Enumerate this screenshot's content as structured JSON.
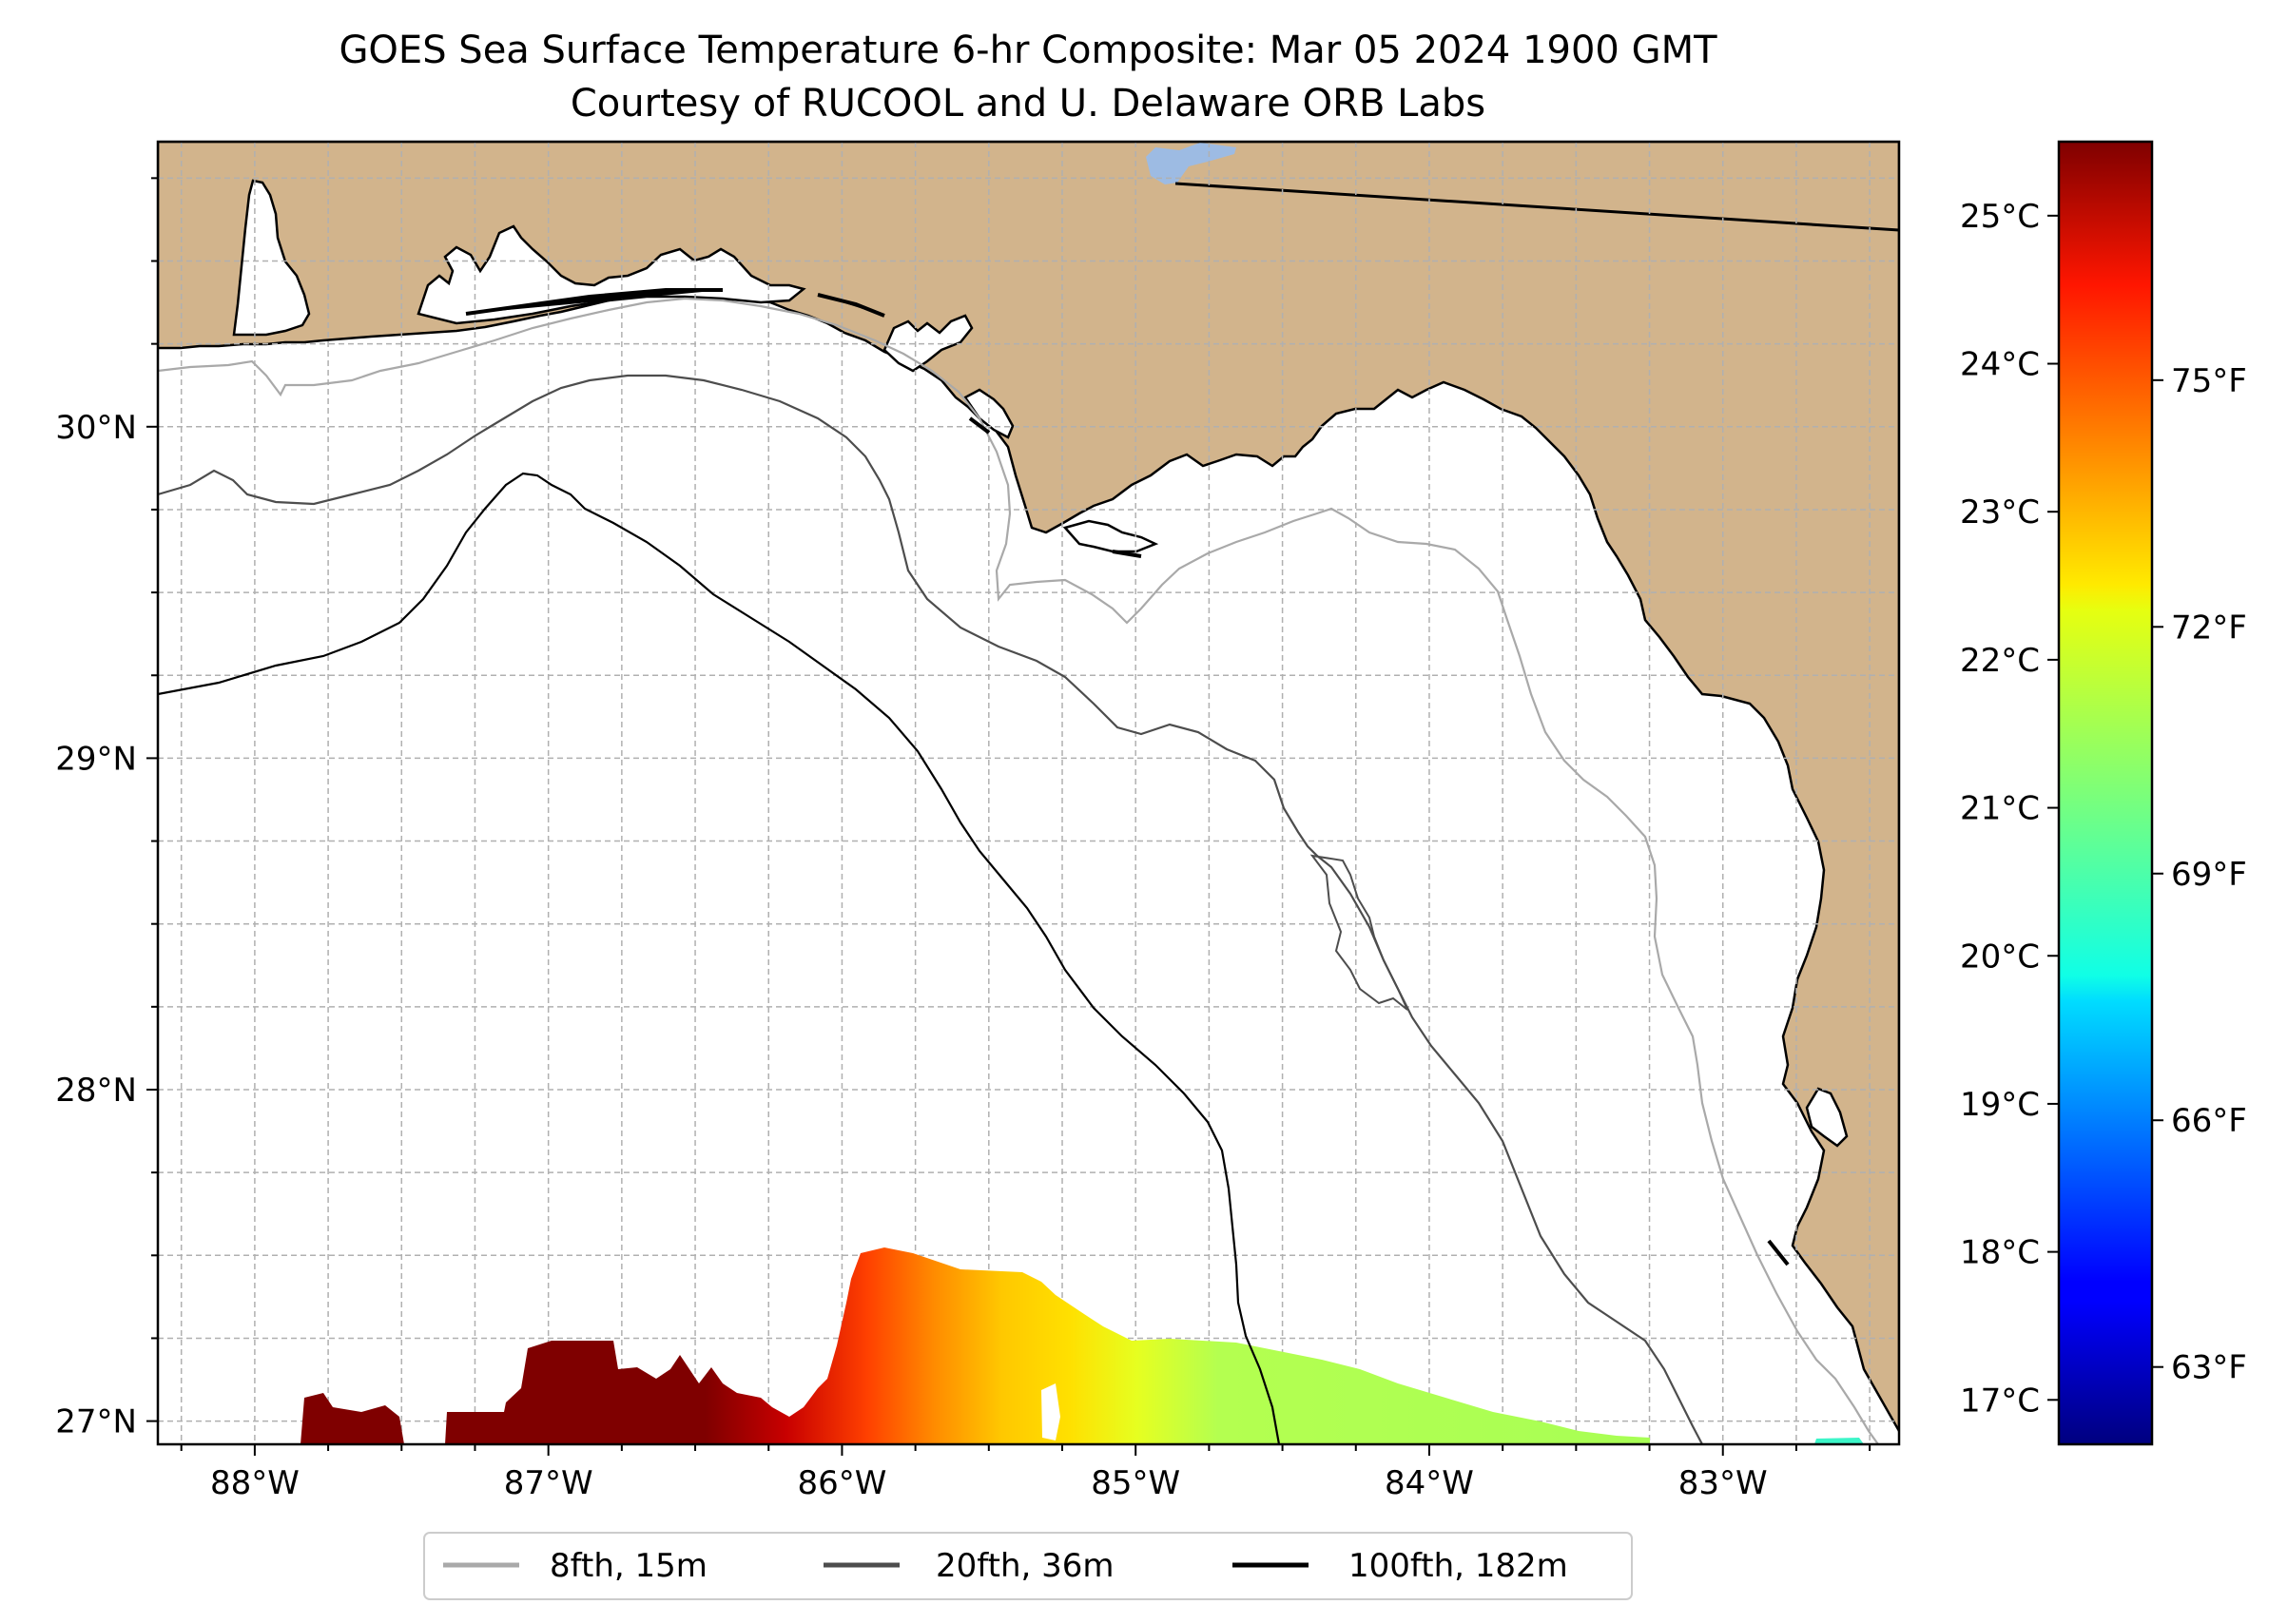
{
  "title": {
    "line1": "GOES Sea Surface Temperature 6-hr Composite: Mar 05 2024 1900 GMT",
    "line2": "Courtesy of RUCOOL and U. Delaware ORB Labs"
  },
  "map": {
    "extent": {
      "lon_min": -88.33,
      "lon_max": -82.4,
      "lat_min": 26.93,
      "lat_max": 30.86
    },
    "lon_ticks": [
      {
        "value": -88,
        "label": "88°W"
      },
      {
        "value": -87,
        "label": "87°W"
      },
      {
        "value": -86,
        "label": "86°W"
      },
      {
        "value": -85,
        "label": "85°W"
      },
      {
        "value": -84,
        "label": "84°W"
      },
      {
        "value": -83,
        "label": "83°W"
      }
    ],
    "lat_ticks": [
      {
        "value": 30,
        "label": "30°N"
      },
      {
        "value": 29,
        "label": "29°N"
      },
      {
        "value": 28,
        "label": "28°N"
      },
      {
        "value": 27,
        "label": "27°N"
      }
    ],
    "gridlines": "dashed, every 0.25°",
    "land_color": "#D2B48C",
    "ocean_color": "#FFFFFF"
  },
  "colorbar": {
    "colormap": "jet",
    "celsius_ticks": [
      {
        "value": 17,
        "label": "17°C"
      },
      {
        "value": 18,
        "label": "18°C"
      },
      {
        "value": 19,
        "label": "19°C"
      },
      {
        "value": 20,
        "label": "20°C"
      },
      {
        "value": 21,
        "label": "21°C"
      },
      {
        "value": 22,
        "label": "22°C"
      },
      {
        "value": 23,
        "label": "23°C"
      },
      {
        "value": 24,
        "label": "24°C"
      },
      {
        "value": 25,
        "label": "25°C"
      }
    ],
    "fahrenheit_ticks": [
      {
        "value": 63,
        "label": "63°F"
      },
      {
        "value": 66,
        "label": "66°F"
      },
      {
        "value": 69,
        "label": "69°F"
      },
      {
        "value": 72,
        "label": "72°F"
      },
      {
        "value": 75,
        "label": "75°F"
      }
    ],
    "range_c": [
      16.7,
      25.5
    ]
  },
  "legend": {
    "items": [
      {
        "label": "8fth, 15m",
        "color": "#A9A9A9"
      },
      {
        "label": "20fth, 36m",
        "color": "#4D4D4D"
      },
      {
        "label": "100fth, 182m",
        "color": "#000000"
      }
    ]
  }
}
